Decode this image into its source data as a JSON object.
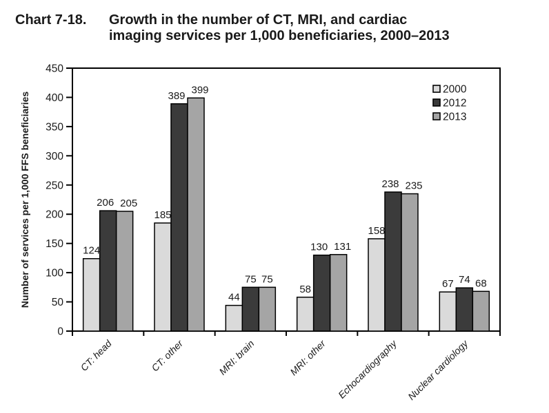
{
  "title": {
    "label": "Chart 7-18.",
    "line1": "Growth in the number of CT, MRI, and cardiac",
    "line2": "imaging services per 1,000 beneficiaries, 2000–2013"
  },
  "chart_data": {
    "type": "bar",
    "title": "Chart 7-18. Growth in the number of CT, MRI, and cardiac imaging services per 1,000 beneficiaries, 2000–2013",
    "categories": [
      "CT: head",
      "CT: other",
      "MRI: brain",
      "MRI: other",
      "Echocardiography",
      "Nuclear cardiology"
    ],
    "series": [
      {
        "name": "2000",
        "color": "#dadada",
        "values": [
          124,
          185,
          44,
          58,
          158,
          67
        ]
      },
      {
        "name": "2012",
        "color": "#3b3b3b",
        "values": [
          206,
          389,
          75,
          130,
          238,
          74
        ]
      },
      {
        "name": "2013",
        "color": "#a5a5a5",
        "values": [
          205,
          399,
          75,
          131,
          235,
          68
        ]
      }
    ],
    "ylabel": "Number of services per 1,000 FFS beneficiaries",
    "xlabel": "",
    "ylim": [
      0,
      450
    ],
    "ytick_step": 50,
    "ytick_labels": [
      "0",
      "50",
      "100",
      "150",
      "200",
      "250",
      "300",
      "350",
      "400",
      "450"
    ],
    "grid": false,
    "bar_labels_visible": true,
    "legend_position": "top-right-inside",
    "legend_entries": [
      "2000",
      "2012",
      "2013"
    ],
    "category_label_style": "italic-rotated-45",
    "bar_outline_color": "#000000",
    "axis_color": "#000000"
  }
}
